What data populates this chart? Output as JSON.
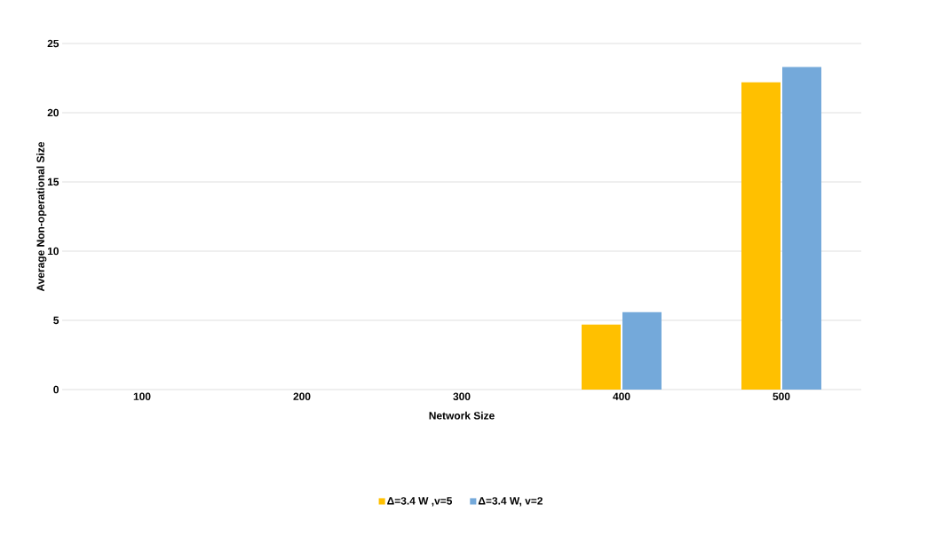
{
  "chart_data": {
    "type": "bar",
    "xlabel": "Network Size",
    "ylabel": "Average Non-operational Size",
    "categories": [
      "100",
      "200",
      "300",
      "400",
      "500"
    ],
    "series": [
      {
        "name": "Δ=3.4 W ,v=5",
        "color": "#ffc000",
        "values": [
          0,
          0,
          0,
          4.7,
          22.2
        ]
      },
      {
        "name": "Δ=3.4 W, v=2",
        "color": "#74a9da",
        "values": [
          0,
          0,
          0,
          5.6,
          23.3
        ]
      }
    ],
    "ylim": [
      0,
      25
    ],
    "yticks": [
      0,
      5,
      10,
      15,
      20,
      25
    ],
    "grid": "y",
    "legend": "bottom"
  }
}
